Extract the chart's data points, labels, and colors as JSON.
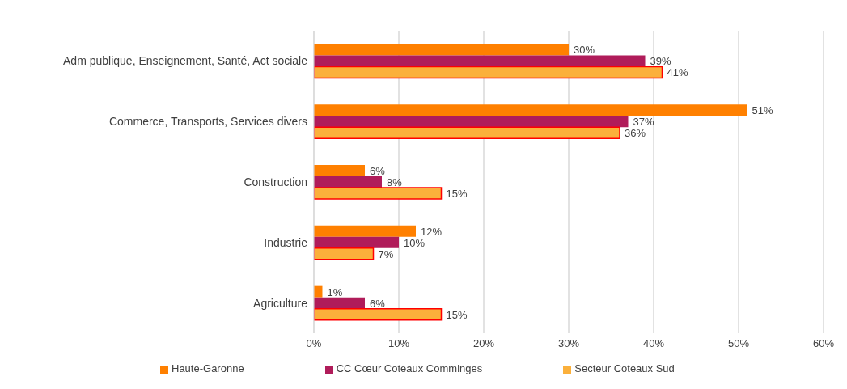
{
  "chart_data": {
    "type": "bar",
    "orientation": "horizontal",
    "categories": [
      "Adm publique, Enseignement, Santé, Act sociale",
      "Commerce, Transports, Services divers",
      "Construction",
      "Industrie",
      "Agriculture"
    ],
    "series": [
      {
        "name": "Haute-Garonne",
        "color": "#ff8000",
        "values": [
          30,
          51,
          6,
          12,
          1
        ],
        "value_labels": [
          "30%",
          "51%",
          "6%",
          "12%",
          "1%"
        ]
      },
      {
        "name": "CC Cœur Coteaux Comminges",
        "color": "#b01c5a",
        "values": [
          39,
          37,
          8,
          10,
          6
        ],
        "value_labels": [
          "39%",
          "37%",
          "8%",
          "10%",
          "6%"
        ]
      },
      {
        "name": "Secteur Coteaux Sud",
        "color": "#fbb03b",
        "values": [
          41,
          36,
          15,
          7,
          15
        ],
        "value_labels": [
          "41%",
          "36%",
          "15%",
          "7%",
          "15%"
        ]
      }
    ],
    "xlim": [
      0,
      60
    ],
    "xticks": [
      {
        "value": 0,
        "label": "0%"
      },
      {
        "value": 10,
        "label": "10%"
      },
      {
        "value": 20,
        "label": "20%"
      },
      {
        "value": 30,
        "label": "30%"
      },
      {
        "value": 40,
        "label": "40%"
      },
      {
        "value": 50,
        "label": "50%"
      },
      {
        "value": 60,
        "label": "60%"
      }
    ],
    "grid": "x",
    "legend": "bottom"
  }
}
